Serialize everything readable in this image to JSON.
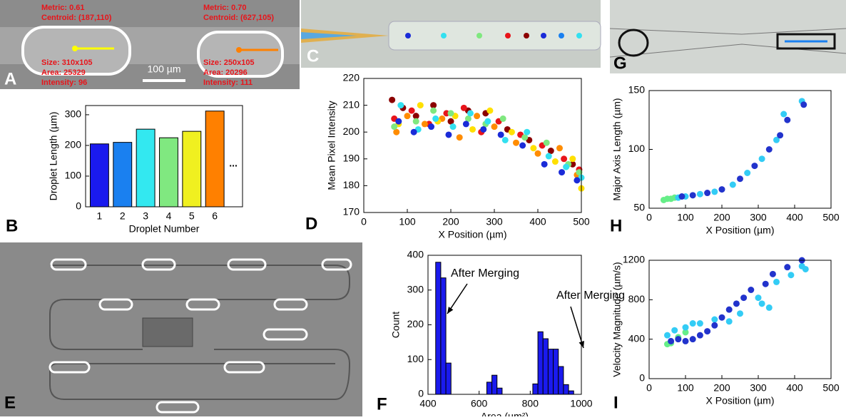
{
  "images": {
    "panel_a": {
      "label": "A",
      "left": [
        "Metric: 0.61",
        "Centroid: (187,110)",
        "Size: 310x105",
        "Area: 25329",
        "Intensity: 96"
      ],
      "right": [
        "Metric: 0.70",
        "Centroid: (627,105)",
        "Size: 250x105",
        "Area: 20296",
        "Intensity: 111"
      ],
      "scale": "100 µm"
    },
    "panel_c": {
      "label": "C"
    },
    "panel_e": {
      "label": "E"
    },
    "panel_g": {
      "label": "G"
    }
  },
  "chart_data": [
    {
      "type": "bar",
      "panel": "B",
      "categories": [
        "1",
        "2",
        "3",
        "4",
        "5",
        "6"
      ],
      "values": [
        205,
        210,
        253,
        225,
        246,
        312
      ],
      "colors": [
        "#1a1aee",
        "#1a80f0",
        "#33e8f0",
        "#80e880",
        "#f0f020",
        "#ff8000"
      ],
      "annotation": "...",
      "xlabel": "Droplet Number",
      "ylabel": "Droplet Length (µm)",
      "ylim": [
        0,
        330
      ],
      "yticks": [
        0,
        100,
        200,
        300
      ]
    },
    {
      "type": "scatter",
      "panel": "D",
      "xlabel": "X Position (µm)",
      "ylabel": "Mean Pixel Intensity",
      "xlim": [
        0,
        500
      ],
      "xticks": [
        0,
        100,
        200,
        300,
        400,
        500
      ],
      "ylim": [
        170,
        220
      ],
      "yticks": [
        170,
        180,
        190,
        200,
        210,
        220
      ],
      "series": [
        {
          "color": "#8b0000",
          "x": [
            65,
            90,
            120,
            160,
            200,
            240,
            280,
            330,
            380,
            430,
            480
          ],
          "values": [
            212,
            209,
            206,
            210,
            204,
            208,
            207,
            201,
            197,
            193,
            188
          ]
        },
        {
          "color": "#e8141a",
          "x": [
            70,
            110,
            150,
            190,
            230,
            270,
            310,
            360,
            410,
            460,
            495
          ],
          "values": [
            205,
            208,
            203,
            207,
            209,
            200,
            204,
            199,
            195,
            190,
            186
          ]
        },
        {
          "color": "#ff8c00",
          "x": [
            75,
            100,
            140,
            180,
            220,
            260,
            300,
            350,
            400,
            450,
            490
          ],
          "values": [
            200,
            206,
            203,
            205,
            198,
            206,
            202,
            196,
            192,
            194,
            184
          ]
        },
        {
          "color": "#ffe000",
          "x": [
            80,
            130,
            170,
            210,
            250,
            290,
            340,
            390,
            440,
            480,
            500
          ],
          "values": [
            203,
            210,
            204,
            206,
            201,
            208,
            200,
            194,
            189,
            190,
            179
          ]
        },
        {
          "color": "#7fe87f",
          "x": [
            70,
            120,
            160,
            200,
            240,
            280,
            320,
            370,
            420,
            470,
            495
          ],
          "values": [
            202,
            204,
            208,
            207,
            205,
            203,
            205,
            198,
            196,
            188,
            185
          ]
        },
        {
          "color": "#33e0f0",
          "x": [
            85,
            125,
            165,
            205,
            245,
            285,
            325,
            375,
            425,
            465,
            500
          ],
          "values": [
            210,
            201,
            205,
            202,
            207,
            204,
            197,
            200,
            191,
            187,
            183
          ]
        },
        {
          "color": "#1a2bd8",
          "x": [
            80,
            115,
            155,
            195,
            235,
            275,
            315,
            365,
            415,
            455,
            490
          ],
          "values": [
            204,
            200,
            202,
            199,
            203,
            201,
            199,
            195,
            188,
            185,
            182
          ]
        }
      ]
    },
    {
      "type": "histogram",
      "panel": "F",
      "xlabel": "Area (µm²)",
      "ylabel": "Count",
      "color": "#1a1aee",
      "bins": [
        430,
        450,
        470,
        490,
        510,
        530,
        550,
        570,
        590,
        610,
        630,
        650,
        670,
        690,
        710,
        730,
        750,
        770,
        790,
        810,
        830,
        850,
        870,
        890,
        910,
        930,
        950,
        970
      ],
      "values": [
        380,
        335,
        90,
        0,
        0,
        0,
        0,
        0,
        0,
        0,
        35,
        55,
        18,
        0,
        0,
        0,
        0,
        0,
        0,
        30,
        180,
        160,
        130,
        130,
        80,
        28,
        10
      ],
      "annotations": [
        "After Merging",
        "After Merging"
      ],
      "xlim": [
        400,
        1000
      ],
      "xticks": [
        400,
        600,
        800,
        1000
      ],
      "ylim": [
        0,
        400
      ],
      "yticks": [
        0,
        100,
        200,
        300,
        400
      ]
    },
    {
      "type": "scatter",
      "panel": "H",
      "xlabel": "X Position (µm)",
      "ylabel": "Major Axis Length (µm)",
      "xlim": [
        0,
        500
      ],
      "xticks": [
        0,
        100,
        200,
        300,
        400,
        500
      ],
      "ylim": [
        50,
        150
      ],
      "yticks": [
        50,
        100,
        150
      ],
      "series": [
        {
          "color": "#66ee88",
          "x": [
            40,
            50,
            60,
            70
          ],
          "values": [
            57,
            58,
            58,
            59
          ]
        },
        {
          "color": "#33ccf5",
          "x": [
            80,
            100,
            140,
            180,
            230,
            270,
            310,
            350,
            370,
            420
          ],
          "values": [
            59,
            60,
            62,
            64,
            70,
            80,
            92,
            108,
            130,
            141
          ]
        },
        {
          "color": "#2233cc",
          "x": [
            90,
            120,
            160,
            200,
            250,
            290,
            330,
            360,
            380,
            425
          ],
          "values": [
            60,
            61,
            63,
            66,
            75,
            86,
            100,
            112,
            125,
            138
          ]
        }
      ]
    },
    {
      "type": "scatter",
      "panel": "I",
      "xlabel": "X Position (µm)",
      "ylabel": "Velocity Magnitude (µm/s)",
      "xlim": [
        0,
        500
      ],
      "xticks": [
        0,
        100,
        200,
        300,
        400,
        500
      ],
      "ylim": [
        0,
        1200
      ],
      "yticks": [
        0,
        400,
        800,
        1200
      ],
      "series": [
        {
          "color": "#66ee88",
          "x": [
            50,
            60,
            80,
            100
          ],
          "values": [
            350,
            360,
            420,
            470
          ]
        },
        {
          "color": "#33ccf5",
          "x": [
            50,
            70,
            100,
            120,
            140,
            180,
            220,
            250,
            300,
            310,
            330,
            350,
            390,
            420,
            430
          ],
          "values": [
            440,
            490,
            520,
            560,
            560,
            600,
            580,
            660,
            820,
            760,
            720,
            980,
            1050,
            1140,
            1110
          ]
        },
        {
          "color": "#2233cc",
          "x": [
            60,
            80,
            100,
            120,
            140,
            160,
            180,
            200,
            220,
            240,
            260,
            280,
            320,
            340,
            380,
            420
          ],
          "values": [
            380,
            400,
            380,
            400,
            440,
            480,
            540,
            620,
            700,
            760,
            820,
            900,
            960,
            1060,
            1130,
            1200
          ]
        }
      ]
    }
  ]
}
